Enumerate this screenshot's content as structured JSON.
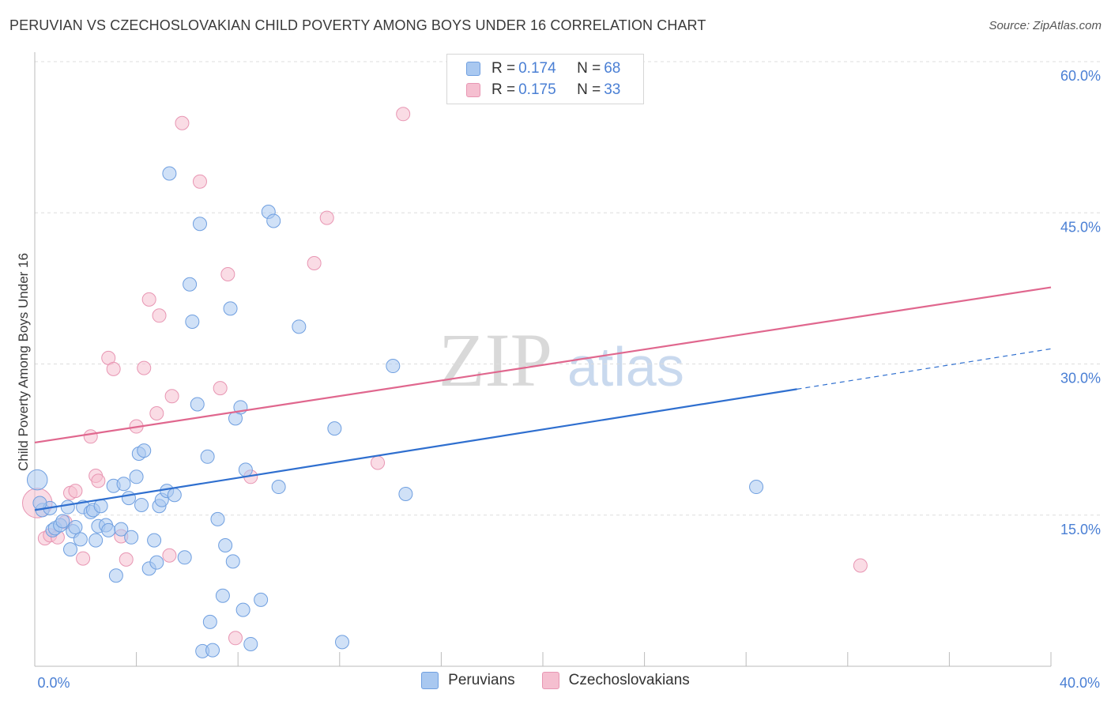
{
  "title": "PERUVIAN VS CZECHOSLOVAKIAN CHILD POVERTY AMONG BOYS UNDER 16 CORRELATION CHART",
  "source": "Source: ZipAtlas.com",
  "watermark": {
    "zip": "ZIP",
    "atlas": "atlas"
  },
  "stats": [
    {
      "r_label": "R = ",
      "r_value": "0.174",
      "n_label": "N = ",
      "n_value": "68"
    },
    {
      "r_label": "R = ",
      "r_value": "0.175",
      "n_label": "N = ",
      "n_value": "33"
    }
  ],
  "legend": [
    {
      "label": "Peruvians"
    },
    {
      "label": "Czechoslovakians"
    }
  ],
  "colors": {
    "peruvians_fill": "#a9c8f0",
    "peruvians_stroke": "#6f9fe0",
    "peruvians_line": "#2f6fcf",
    "czech_fill": "#f5bfd0",
    "czech_stroke": "#e896b3",
    "czech_line": "#e0678e",
    "axis_text": "#4a7fd4",
    "grid": "#dddddd"
  },
  "chart_data": {
    "type": "scatter",
    "title": "PERUVIAN VS CZECHOSLOVAKIAN CHILD POVERTY AMONG BOYS UNDER 16 CORRELATION CHART",
    "xlabel": "",
    "ylabel": "Child Poverty Among Boys Under 16",
    "xlim": [
      0,
      40
    ],
    "ylim": [
      0,
      60
    ],
    "x_tick_labels": [
      "0.0%",
      "40.0%"
    ],
    "y_ticks": [
      {
        "value": 15,
        "label": "15.0%"
      },
      {
        "value": 30,
        "label": "30.0%"
      },
      {
        "value": 45,
        "label": "45.0%"
      },
      {
        "value": 60,
        "label": "60.0%"
      }
    ],
    "grid": "horizontal dashed",
    "legend_position": "bottom-center",
    "series": [
      {
        "name": "Peruvians",
        "R": 0.174,
        "N": 68,
        "trend": {
          "x0": 0,
          "y0": 15.5,
          "x1": 30,
          "y1": 27.5,
          "dashed_to_x": 40,
          "dashed_to_y": 31.5
        },
        "points": [
          [
            0.1,
            18.5,
            1.5
          ],
          [
            0.3,
            15.5,
            1
          ],
          [
            0.6,
            15.7,
            1
          ],
          [
            0.7,
            13.5,
            1
          ],
          [
            0.8,
            13.7,
            1
          ],
          [
            1.0,
            14.0,
            1
          ],
          [
            1.1,
            14.4,
            1
          ],
          [
            1.3,
            15.8,
            1
          ],
          [
            1.4,
            11.6,
            1
          ],
          [
            1.5,
            13.4,
            1
          ],
          [
            1.6,
            13.8,
            1
          ],
          [
            1.8,
            12.6,
            1
          ],
          [
            1.9,
            15.8,
            1
          ],
          [
            2.2,
            15.3,
            1
          ],
          [
            2.3,
            15.5,
            1
          ],
          [
            2.4,
            12.5,
            1
          ],
          [
            2.5,
            13.9,
            1
          ],
          [
            2.6,
            15.9,
            1
          ],
          [
            2.8,
            14.0,
            1
          ],
          [
            2.9,
            13.5,
            1
          ],
          [
            3.1,
            17.9,
            1
          ],
          [
            3.2,
            9.0,
            1
          ],
          [
            3.4,
            13.6,
            1
          ],
          [
            3.5,
            18.1,
            1
          ],
          [
            3.7,
            16.7,
            1
          ],
          [
            3.8,
            12.8,
            1
          ],
          [
            4.0,
            18.8,
            1
          ],
          [
            4.1,
            21.1,
            1
          ],
          [
            4.2,
            16.0,
            1
          ],
          [
            4.3,
            21.4,
            1
          ],
          [
            4.5,
            9.7,
            1
          ],
          [
            4.7,
            12.5,
            1
          ],
          [
            4.8,
            10.3,
            1
          ],
          [
            4.9,
            15.9,
            1
          ],
          [
            5.0,
            16.5,
            1
          ],
          [
            5.2,
            17.4,
            1
          ],
          [
            5.3,
            48.9,
            1
          ],
          [
            5.5,
            17.0,
            1
          ],
          [
            5.9,
            10.8,
            1
          ],
          [
            6.1,
            37.9,
            1
          ],
          [
            6.2,
            34.2,
            1
          ],
          [
            6.4,
            26.0,
            1
          ],
          [
            6.5,
            43.9,
            1
          ],
          [
            6.6,
            1.5,
            1
          ],
          [
            6.8,
            20.8,
            1
          ],
          [
            6.9,
            4.4,
            1
          ],
          [
            7.0,
            1.6,
            1
          ],
          [
            7.2,
            14.6,
            1
          ],
          [
            7.4,
            7.0,
            1
          ],
          [
            7.5,
            12.0,
            1
          ],
          [
            7.7,
            35.5,
            1
          ],
          [
            7.8,
            10.4,
            1
          ],
          [
            7.9,
            24.6,
            1
          ],
          [
            8.1,
            25.7,
            1
          ],
          [
            8.2,
            5.6,
            1
          ],
          [
            8.3,
            19.5,
            1
          ],
          [
            8.5,
            2.2,
            1
          ],
          [
            8.9,
            6.6,
            1
          ],
          [
            9.2,
            45.1,
            1
          ],
          [
            9.4,
            44.2,
            1
          ],
          [
            9.6,
            17.8,
            1
          ],
          [
            10.4,
            33.7,
            1
          ],
          [
            11.8,
            23.6,
            1
          ],
          [
            12.1,
            2.4,
            1
          ],
          [
            14.1,
            29.8,
            1
          ],
          [
            14.6,
            17.1,
            1
          ],
          [
            28.4,
            17.8,
            1
          ],
          [
            0.2,
            16.2,
            1
          ]
        ]
      },
      {
        "name": "Czechoslovakians",
        "R": 0.175,
        "N": 33,
        "trend": {
          "x0": 0,
          "y0": 22.2,
          "x1": 40,
          "y1": 37.6
        },
        "points": [
          [
            0.1,
            16.2,
            2.2
          ],
          [
            0.4,
            12.7,
            1
          ],
          [
            0.6,
            13.0,
            1
          ],
          [
            0.9,
            12.8,
            1
          ],
          [
            1.2,
            14.3,
            1
          ],
          [
            1.4,
            17.2,
            1
          ],
          [
            1.6,
            17.4,
            1
          ],
          [
            1.9,
            10.7,
            1
          ],
          [
            2.2,
            22.8,
            1
          ],
          [
            2.4,
            18.9,
            1
          ],
          [
            2.5,
            18.4,
            1
          ],
          [
            2.9,
            30.6,
            1
          ],
          [
            3.1,
            29.5,
            1
          ],
          [
            3.4,
            12.9,
            1
          ],
          [
            3.6,
            10.6,
            1
          ],
          [
            4.0,
            23.8,
            1
          ],
          [
            4.3,
            29.6,
            1
          ],
          [
            4.5,
            36.4,
            1
          ],
          [
            4.8,
            25.1,
            1
          ],
          [
            4.9,
            34.8,
            1
          ],
          [
            5.3,
            11.0,
            1
          ],
          [
            5.4,
            26.8,
            1
          ],
          [
            5.8,
            53.9,
            1
          ],
          [
            6.5,
            48.1,
            1
          ],
          [
            7.3,
            27.6,
            1
          ],
          [
            7.6,
            38.9,
            1
          ],
          [
            7.9,
            2.8,
            1
          ],
          [
            8.5,
            18.8,
            1
          ],
          [
            11.0,
            40.0,
            1
          ],
          [
            11.5,
            44.5,
            1
          ],
          [
            13.5,
            20.2,
            1
          ],
          [
            14.5,
            54.8,
            1
          ],
          [
            32.5,
            10.0,
            1
          ]
        ]
      }
    ]
  }
}
